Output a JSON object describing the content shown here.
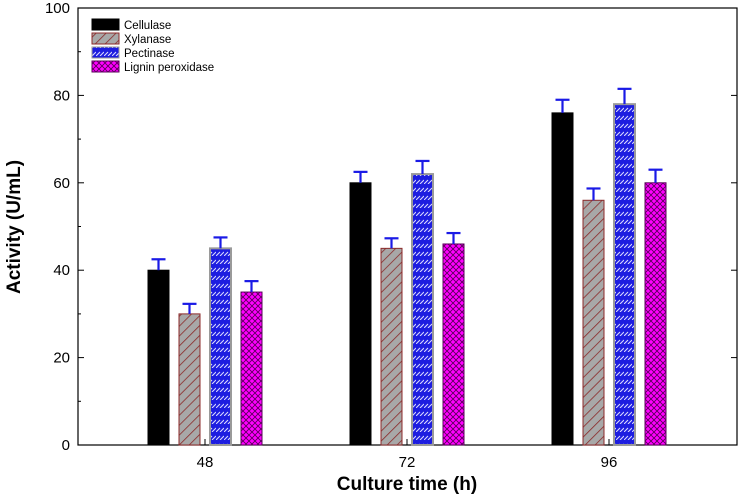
{
  "chart_data": {
    "type": "bar",
    "categories": [
      "48",
      "72",
      "96"
    ],
    "series": [
      {
        "name": "Cellulase",
        "values": [
          40,
          60,
          76
        ],
        "errors": [
          2.5,
          2.5,
          3.0
        ],
        "color": "#000000",
        "pattern": "solid"
      },
      {
        "name": "Xylanase",
        "values": [
          30,
          45,
          56
        ],
        "errors": [
          2.3,
          2.3,
          2.7
        ],
        "color": "#9a9a9a",
        "pattern": "hatch"
      },
      {
        "name": "Pectinase",
        "values": [
          45,
          62,
          78
        ],
        "errors": [
          2.5,
          3.0,
          3.5
        ],
        "color": "#1d1de0",
        "pattern": "dash"
      },
      {
        "name": "Lignin peroxidase",
        "values": [
          35,
          46,
          60
        ],
        "errors": [
          2.5,
          2.5,
          3.0
        ],
        "color": "#ff00ff",
        "pattern": "crosshatch"
      }
    ],
    "xlabel": "Culture time (h)",
    "ylabel": "Activity (U/mL)",
    "ylim": [
      0,
      100
    ],
    "yticks": [
      0,
      20,
      40,
      60,
      80,
      100
    ],
    "legend_position": "top-left",
    "errorbar_color": "#1a1ae6",
    "grid": false
  }
}
